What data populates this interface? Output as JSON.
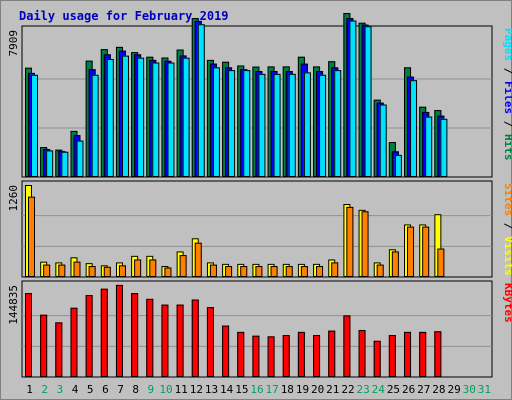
{
  "chart_data": {
    "type": "bar",
    "title": "Daily usage for February 2019",
    "x": [
      "1",
      "2",
      "3",
      "4",
      "5",
      "6",
      "7",
      "8",
      "9",
      "10",
      "11",
      "12",
      "13",
      "14",
      "15",
      "16",
      "17",
      "18",
      "19",
      "20",
      "21",
      "22",
      "23",
      "24",
      "25",
      "26",
      "27",
      "28",
      "29",
      "30",
      "31"
    ],
    "weekend_days": [
      "2",
      "3",
      "9",
      "10",
      "16",
      "17",
      "23",
      "24",
      "30",
      "31"
    ],
    "colors": {
      "hits": "#008040",
      "files": "#0000ff",
      "pages": "#00e0ff",
      "visits": "#ffff00",
      "sites": "#ff8000",
      "kbytes": "#ff0000",
      "weekday_label": "#000000",
      "weekend_label": "#00a060",
      "title": "#0000c0",
      "panel": "#c0c0c0",
      "frame": "#a0a0a0"
    },
    "panels": [
      {
        "id": "top",
        "ymax_label": "7909",
        "ymax": 7909,
        "right_label_parts": [
          {
            "text": "Pages",
            "color": "#00e0ff"
          },
          {
            "text": " / ",
            "color": "#000000"
          },
          {
            "text": "Files",
            "color": "#0000ff"
          },
          {
            "text": " / ",
            "color": "#000000"
          },
          {
            "text": "Hits",
            "color": "#008040"
          }
        ],
        "series": [
          {
            "name": "Hits",
            "color": "#008040",
            "values": [
              5880,
              1610,
              1470,
              2480,
              6260,
              6880,
              7000,
              6720,
              6470,
              6430,
              6860,
              8550,
              6300,
              6200,
              6000,
              5940,
              5950,
              5950,
              6470,
              5950,
              6230,
              8820,
              8300,
              4160,
              1880,
              5900,
              3780,
              3600,
              0,
              0,
              0
            ]
          },
          {
            "name": "Files",
            "color": "#0000ff",
            "values": [
              5600,
              1500,
              1400,
              2250,
              5800,
              6600,
              6800,
              6600,
              6300,
              6250,
              6540,
              8400,
              6100,
              5900,
              5800,
              5700,
              5700,
              5700,
              6100,
              5700,
              5900,
              8550,
              8200,
              4000,
              1380,
              5400,
              3500,
              3300,
              0,
              0,
              0
            ]
          },
          {
            "name": "Pages",
            "color": "#00e0ff",
            "values": [
              5500,
              1430,
              1360,
              1960,
              5500,
              6350,
              6530,
              6420,
              6160,
              6160,
              6420,
              8220,
              5900,
              5750,
              5750,
              5550,
              5550,
              5550,
              5630,
              5500,
              5750,
              8420,
              8110,
              3900,
              1190,
              5210,
              3250,
              3130,
              0,
              0,
              0
            ]
          }
        ]
      },
      {
        "id": "middle",
        "ymax_label": "1260",
        "ymax": 1260,
        "right_label_parts": [
          {
            "text": "Sites",
            "color": "#ff8000"
          },
          {
            "text": " / ",
            "color": "#000000"
          },
          {
            "text": "Visits",
            "color": "#ffff00"
          }
        ],
        "series": [
          {
            "name": "Visits",
            "color": "#ffff00",
            "values": [
              1260,
              210,
              200,
              270,
              190,
              160,
              200,
              290,
              290,
              150,
              350,
              530,
              200,
              180,
              180,
              180,
              180,
              180,
              180,
              180,
              240,
              1000,
              920,
              200,
              380,
              720,
              720,
              860,
              0,
              0,
              0
            ]
          },
          {
            "name": "Sites",
            "color": "#ff8000",
            "values": [
              1100,
              170,
              170,
              210,
              150,
              140,
              160,
              240,
              240,
              130,
              300,
              470,
              170,
              150,
              150,
              150,
              150,
              150,
              150,
              150,
              200,
              960,
              900,
              170,
              350,
              690,
              690,
              390,
              0,
              0,
              0
            ]
          }
        ]
      },
      {
        "id": "bottom",
        "ymax_label": "144835",
        "ymax": 144835,
        "right_label_parts": [
          {
            "text": "KBytes",
            "color": "#ff0000"
          }
        ],
        "series": [
          {
            "name": "KBytes",
            "color": "#ff0000",
            "values": [
              132000,
              98000,
              86000,
              109000,
              129000,
              139000,
              145000,
              132000,
              123000,
              114000,
              114000,
              122000,
              110000,
              81000,
              71000,
              65000,
              64000,
              66000,
              71000,
              66000,
              73000,
              97000,
              74000,
              57000,
              66000,
              71000,
              71000,
              72000,
              0,
              0,
              0
            ]
          }
        ]
      }
    ]
  }
}
